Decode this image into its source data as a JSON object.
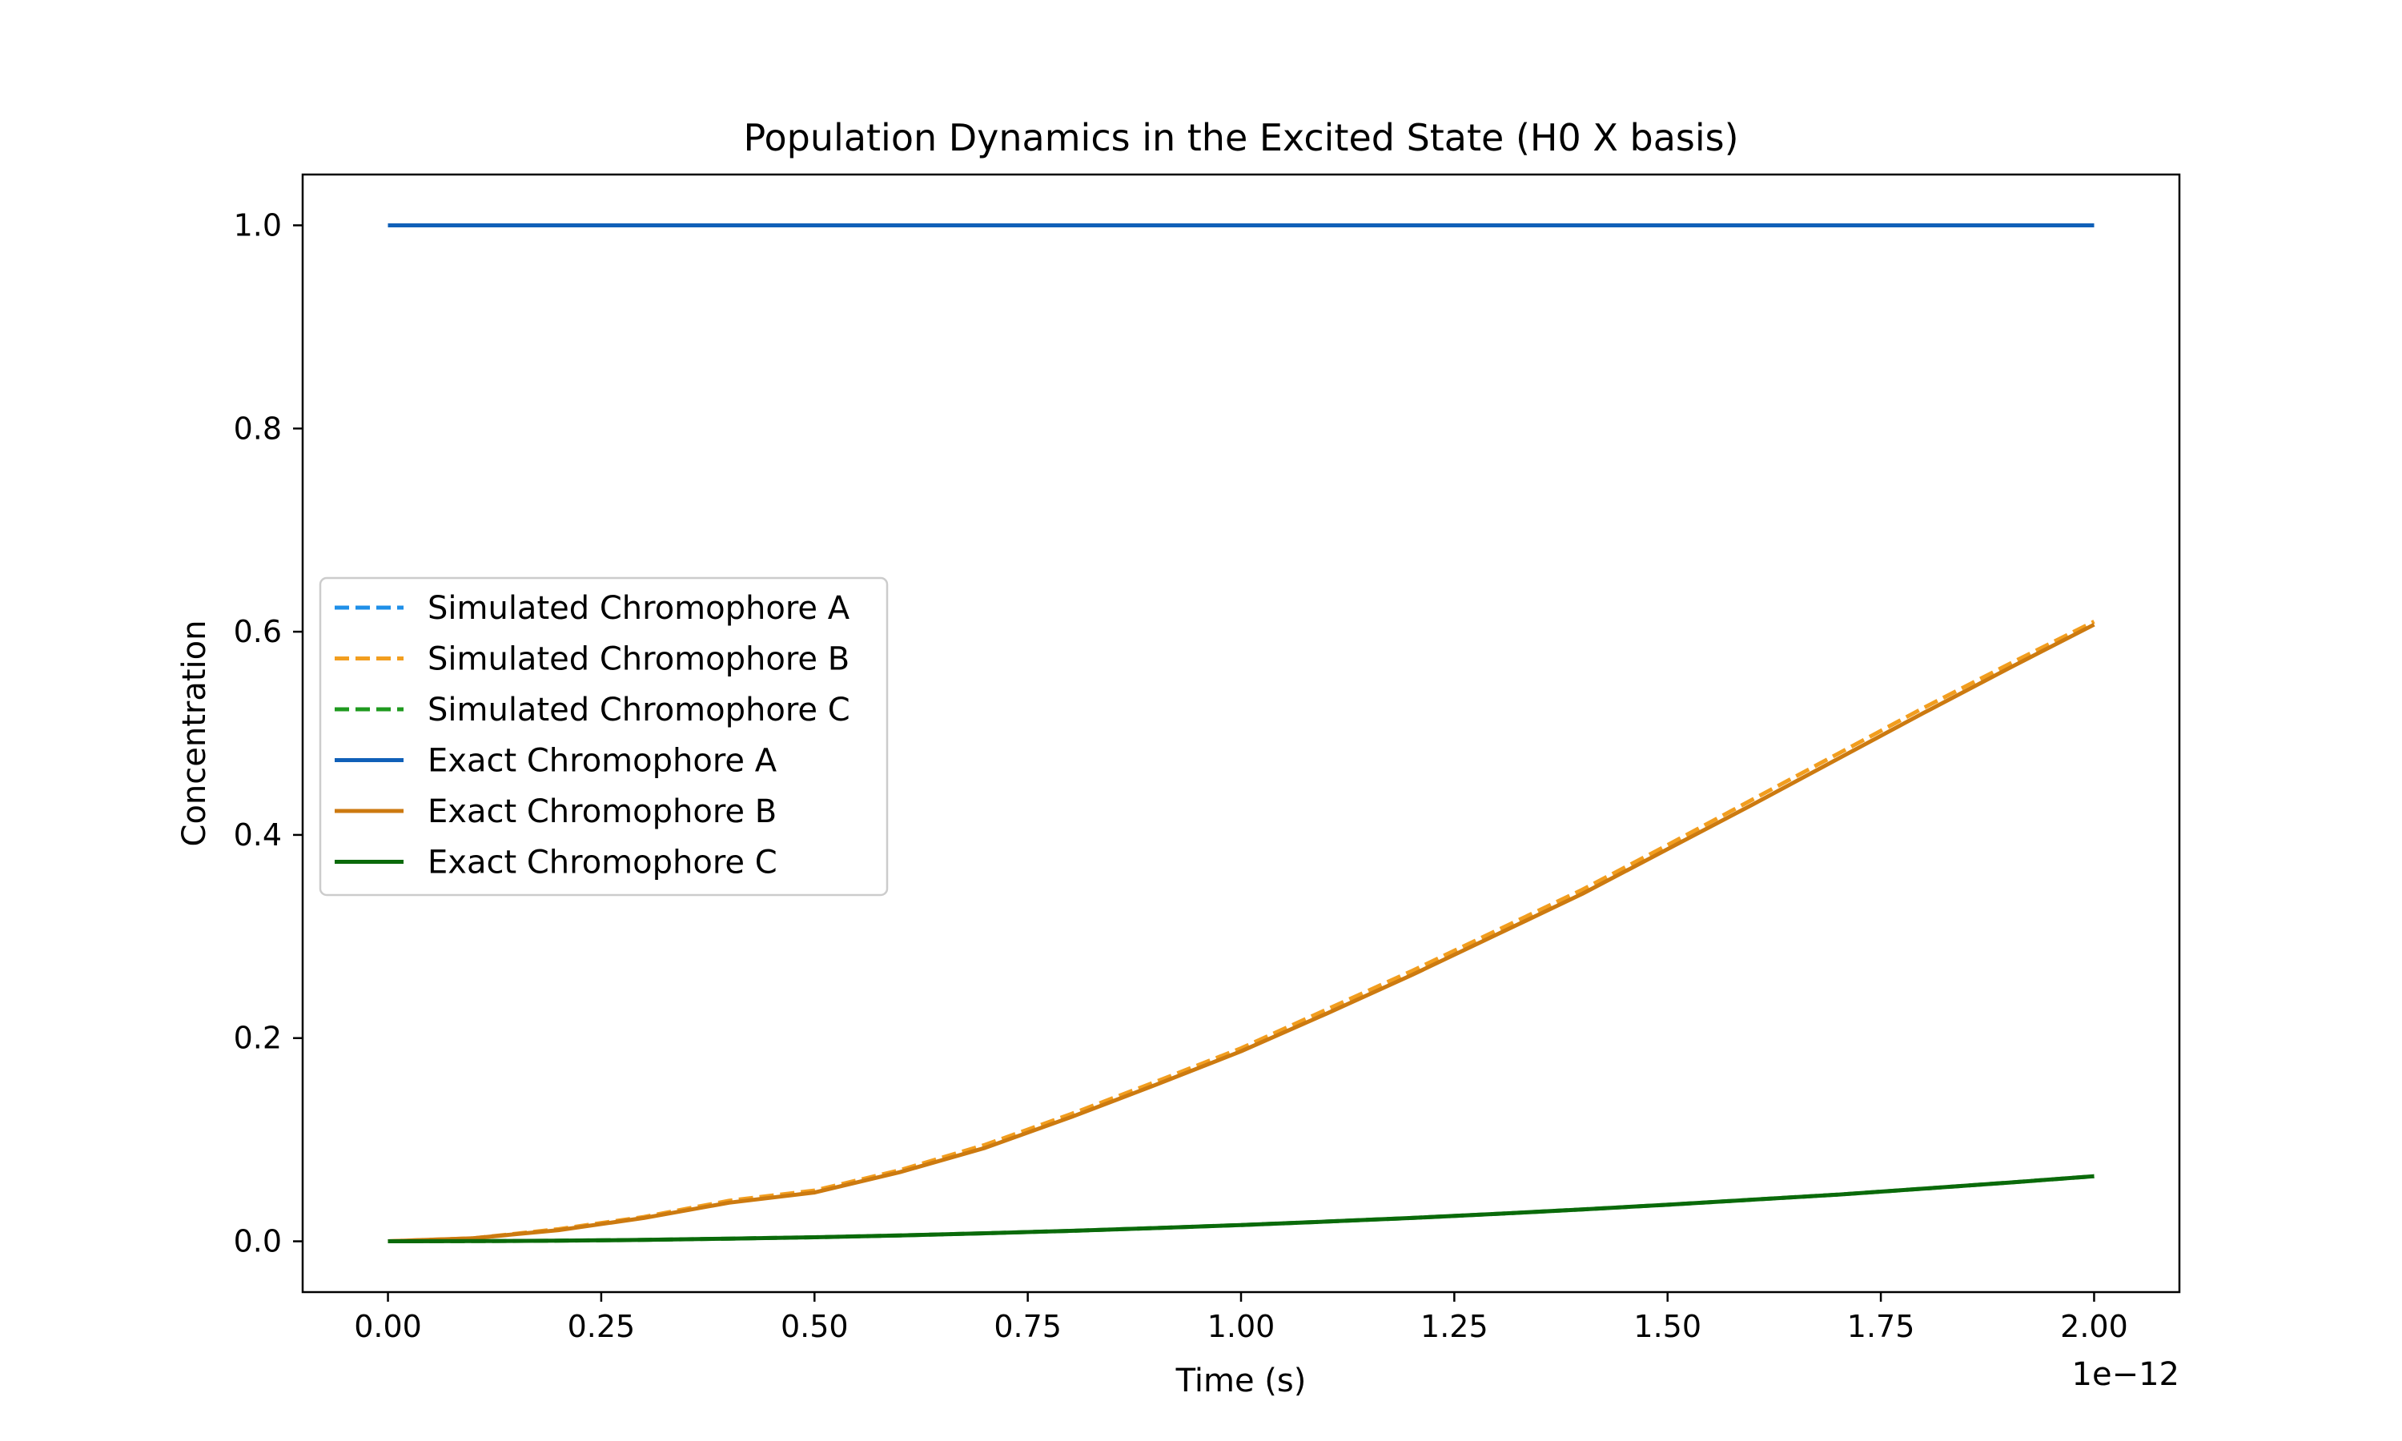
{
  "chart_data": {
    "type": "line",
    "title": "Population Dynamics in the Excited State (H0 X basis)",
    "xlabel": "Time (s)",
    "ylabel": "Concentration",
    "x_offset_text": "1e−12",
    "x_ticks": [
      "0.00",
      "0.25",
      "0.50",
      "0.75",
      "1.00",
      "1.25",
      "1.50",
      "1.75",
      "2.00"
    ],
    "x_tick_values": [
      0,
      0.25,
      0.5,
      0.75,
      1.0,
      1.25,
      1.5,
      1.75,
      2.0
    ],
    "y_ticks": [
      "0.0",
      "0.2",
      "0.4",
      "0.6",
      "0.8",
      "1.0"
    ],
    "y_tick_values": [
      0,
      0.2,
      0.4,
      0.6,
      0.8,
      1.0
    ],
    "xlim": [
      -0.1,
      2.1
    ],
    "ylim": [
      -0.05,
      1.05
    ],
    "x_scale_note": "x values shown in units of 1e-12 s",
    "grid": false,
    "legend_position": "center-left",
    "x": [
      0,
      0.1,
      0.2,
      0.3,
      0.4,
      0.5,
      0.6,
      0.7,
      0.8,
      0.9,
      1.0,
      1.1,
      1.2,
      1.3,
      1.4,
      1.5,
      1.6,
      1.7,
      1.8,
      1.9,
      2.0
    ],
    "series": [
      {
        "name": "Simulated Chromophore A",
        "style": "dashed",
        "color": "#1f8fe8",
        "values": [
          1,
          1,
          1,
          1,
          1,
          1,
          1,
          1,
          1,
          1,
          1,
          1,
          1,
          1,
          1,
          1,
          1,
          1,
          1,
          1,
          1
        ]
      },
      {
        "name": "Simulated Chromophore B",
        "style": "dashed",
        "color": "#f29e1f",
        "values": [
          0,
          0.003,
          0.012,
          0.024,
          0.04,
          0.05,
          0.07,
          0.095,
          0.125,
          0.157,
          0.19,
          0.228,
          0.266,
          0.306,
          0.346,
          0.39,
          0.435,
          0.48,
          0.525,
          0.568,
          0.61
        ]
      },
      {
        "name": "Simulated Chromophore C",
        "style": "dashed",
        "color": "#1f9a1f",
        "values": [
          0,
          0.0002,
          0.0006,
          0.0014,
          0.0026,
          0.004,
          0.0058,
          0.0079,
          0.0103,
          0.013,
          0.016,
          0.0194,
          0.023,
          0.027,
          0.0314,
          0.036,
          0.041,
          0.046,
          0.0518,
          0.0578,
          0.064
        ]
      },
      {
        "name": "Exact Chromophore A",
        "style": "solid",
        "color": "#1060b8",
        "values": [
          1,
          1,
          1,
          1,
          1,
          1,
          1,
          1,
          1,
          1,
          1,
          1,
          1,
          1,
          1,
          1,
          1,
          1,
          1,
          1,
          1
        ]
      },
      {
        "name": "Exact Chromophore B",
        "style": "solid",
        "color": "#cc7a10",
        "values": [
          0,
          0.003,
          0.011,
          0.023,
          0.038,
          0.048,
          0.068,
          0.092,
          0.122,
          0.154,
          0.187,
          0.224,
          0.262,
          0.302,
          0.342,
          0.386,
          0.43,
          0.475,
          0.52,
          0.564,
          0.607
        ]
      },
      {
        "name": "Exact Chromophore C",
        "style": "solid",
        "color": "#0a6a0a",
        "values": [
          0,
          0.0002,
          0.0006,
          0.0014,
          0.0026,
          0.004,
          0.0058,
          0.0079,
          0.0103,
          0.013,
          0.016,
          0.0194,
          0.023,
          0.027,
          0.0314,
          0.036,
          0.041,
          0.046,
          0.0518,
          0.0578,
          0.064
        ]
      }
    ]
  }
}
